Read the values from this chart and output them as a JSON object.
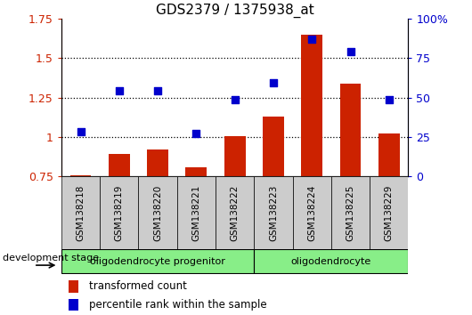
{
  "title": "GDS2379 / 1375938_at",
  "samples": [
    "GSM138218",
    "GSM138219",
    "GSM138220",
    "GSM138221",
    "GSM138222",
    "GSM138223",
    "GSM138224",
    "GSM138225",
    "GSM138229"
  ],
  "transformed_count": [
    0.755,
    0.895,
    0.92,
    0.81,
    1.005,
    1.13,
    1.65,
    1.34,
    1.025
  ],
  "percentile_rank": [
    28.5,
    54.5,
    54.5,
    27.0,
    49.0,
    59.5,
    87.0,
    79.5,
    49.0
  ],
  "bar_bottom": 0.75,
  "ylim_left": [
    0.75,
    1.75
  ],
  "ylim_right": [
    0,
    100
  ],
  "yticks_left": [
    0.75,
    1.0,
    1.25,
    1.5,
    1.75
  ],
  "yticks_right": [
    0,
    25,
    50,
    75,
    100
  ],
  "ytick_labels_left": [
    "0.75",
    "1",
    "1.25",
    "1.5",
    "1.75"
  ],
  "ytick_labels_right": [
    "0",
    "25",
    "50",
    "75",
    "100%"
  ],
  "dotted_lines": [
    1.0,
    1.25,
    1.5
  ],
  "bar_color": "#cc2200",
  "scatter_color": "#0000cc",
  "group1_label": "oligodendrocyte progenitor",
  "group2_label": "oligodendrocyte",
  "group1_count": 5,
  "group2_count": 4,
  "group_bg_color": "#88ee88",
  "group_text_color": "#000000",
  "xlabel_stage": "development stage",
  "legend_bar_label": "transformed count",
  "legend_scatter_label": "percentile rank within the sample",
  "tick_bg_color": "#cccccc",
  "plot_bg_color": "#ffffff",
  "outer_bg_color": "#ffffff"
}
